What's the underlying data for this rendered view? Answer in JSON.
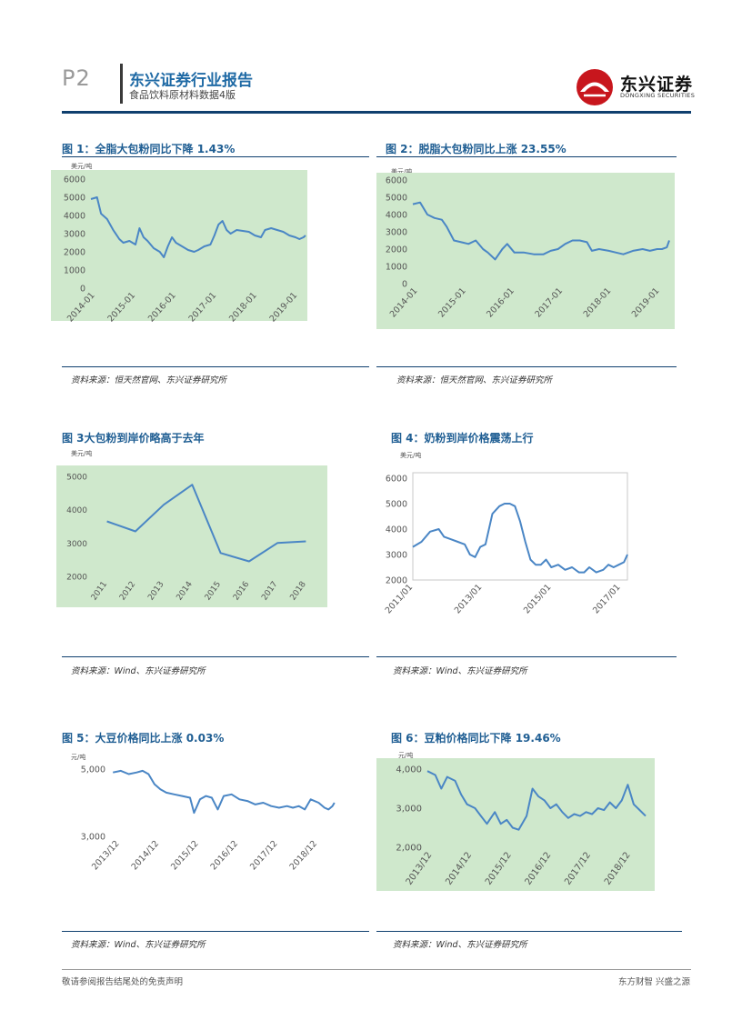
{
  "header": {
    "page_number": "P2",
    "title": "东兴证券行业报告",
    "subtitle": "食品饮料原材料数据4版",
    "logo_name": "东兴证券",
    "logo_en": "DONGXING SECURITIES"
  },
  "figures": [
    {
      "title": "图 1：全脂大包粉同比下降 1.43%",
      "unit": "美元/吨",
      "source": "资料来源：恒天然官网、东兴证券研究所"
    },
    {
      "title": "图 2：脱脂大包粉同比上涨 23.55%",
      "unit": "美元/吨",
      "source": "资料来源：恒天然官网、东兴证券研究所"
    },
    {
      "title": "图 3大包粉到岸价略高于去年",
      "unit": "美元/吨",
      "source": "资料来源：Wind、东兴证券研究所"
    },
    {
      "title": "图 4：奶粉到岸价格震荡上行",
      "unit": "美元/吨",
      "source": "资料来源：Wind、东兴证券研究所"
    },
    {
      "title": "图 5：大豆价格同比上涨 0.03%",
      "unit": "元/吨",
      "source": "资料来源：Wind、东兴证券研究所"
    },
    {
      "title": "图 6：豆粕价格同比下降 19.46%",
      "unit": "元/吨",
      "source": "资料来源：Wind、东兴证券研究所"
    }
  ],
  "chart_data": [
    {
      "type": "line",
      "title": "图 1：全脂大包粉同比下降 1.43%",
      "ylabel": "美元/吨",
      "ylim": [
        0,
        6000
      ],
      "yticks": [
        "6000",
        "5000",
        "4000",
        "3000",
        "2000",
        "1000",
        "0"
      ],
      "xticks": [
        "2014-01",
        "2015-01",
        "2016-01",
        "2017-01",
        "2018-01",
        "2019-01"
      ],
      "xlim": [
        2013.9,
        2019.2
      ],
      "series": [
        {
          "name": "全脂大包粉",
          "x": [
            2013.9,
            2014.05,
            2014.15,
            2014.3,
            2014.45,
            2014.6,
            2014.7,
            2014.85,
            2015.0,
            2015.1,
            2015.2,
            2015.3,
            2015.45,
            2015.6,
            2015.7,
            2015.8,
            2015.9,
            2016.0,
            2016.15,
            2016.3,
            2016.45,
            2016.55,
            2016.7,
            2016.85,
            2016.95,
            2017.05,
            2017.15,
            2017.25,
            2017.35,
            2017.5,
            2017.65,
            2017.8,
            2017.95,
            2018.1,
            2018.2,
            2018.35,
            2018.5,
            2018.65,
            2018.8,
            2018.95,
            2019.05,
            2019.15,
            2019.2
          ],
          "values": [
            4900,
            5000,
            4100,
            3800,
            3200,
            2700,
            2500,
            2600,
            2400,
            3300,
            2800,
            2600,
            2200,
            2000,
            1700,
            2300,
            2800,
            2500,
            2300,
            2100,
            2000,
            2100,
            2300,
            2400,
            2900,
            3500,
            3700,
            3200,
            3000,
            3200,
            3150,
            3100,
            2900,
            2800,
            3200,
            3300,
            3200,
            3100,
            2900,
            2800,
            2700,
            2800,
            2900
          ]
        }
      ],
      "source": "资料来源：恒天然官网、东兴证券研究所"
    },
    {
      "type": "line",
      "title": "图 2：脱脂大包粉同比上涨 23.55%",
      "ylabel": "美元/吨",
      "ylim": [
        0,
        6000
      ],
      "yticks": [
        "6000",
        "5000",
        "4000",
        "3000",
        "2000",
        "1000",
        "0"
      ],
      "xticks": [
        "2014-01",
        "2015-01",
        "2016-01",
        "2017-01",
        "2018-01",
        "2019-01"
      ],
      "xlim": [
        2013.9,
        2019.2
      ],
      "series": [
        {
          "name": "脱脂大包粉",
          "x": [
            2013.9,
            2014.05,
            2014.2,
            2014.35,
            2014.5,
            2014.6,
            2014.75,
            2014.9,
            2015.05,
            2015.2,
            2015.35,
            2015.45,
            2015.6,
            2015.75,
            2015.85,
            2016.0,
            2016.2,
            2016.4,
            2016.6,
            2016.75,
            2016.9,
            2017.05,
            2017.2,
            2017.35,
            2017.5,
            2017.6,
            2017.75,
            2017.95,
            2018.1,
            2018.25,
            2018.45,
            2018.65,
            2018.8,
            2018.95,
            2019.05,
            2019.15,
            2019.2
          ],
          "values": [
            4600,
            4700,
            4000,
            3800,
            3700,
            3300,
            2500,
            2400,
            2300,
            2500,
            2000,
            1800,
            1400,
            2000,
            2300,
            1800,
            1800,
            1700,
            1700,
            1900,
            2000,
            2300,
            2500,
            2500,
            2400,
            1900,
            2000,
            1900,
            1800,
            1700,
            1900,
            2000,
            1900,
            2000,
            2000,
            2100,
            2500
          ]
        }
      ],
      "source": "资料来源：恒天然官网、东兴证券研究所"
    },
    {
      "type": "line",
      "title": "图 3大包粉到岸价略高于去年",
      "ylabel": "美元/吨",
      "ylim": [
        2000,
        5000
      ],
      "yticks": [
        "5000",
        "4000",
        "3000",
        "2000"
      ],
      "categories": [
        "2011",
        "2012",
        "2013",
        "2014",
        "2015",
        "2016",
        "2017",
        "2018"
      ],
      "series": [
        {
          "name": "大包粉到岸价",
          "values": [
            3650,
            3350,
            4150,
            4750,
            2700,
            2450,
            3000,
            3050
          ]
        }
      ],
      "source": "资料来源：Wind、东兴证券研究所"
    },
    {
      "type": "line",
      "title": "图 4：奶粉到岸价格震荡上行",
      "ylabel": "美元/吨",
      "ylim": [
        2000,
        6000
      ],
      "yticks": [
        "6000",
        "5000",
        "4000",
        "3000",
        "2000"
      ],
      "xticks": [
        "2011/01",
        "2013/01",
        "2015/01",
        "2017/01"
      ],
      "xlim": [
        2011.0,
        2017.2
      ],
      "series": [
        {
          "name": "奶粉到岸价",
          "x": [
            2011.0,
            2011.25,
            2011.5,
            2011.75,
            2011.9,
            2012.1,
            2012.3,
            2012.5,
            2012.65,
            2012.8,
            2012.95,
            2013.1,
            2013.3,
            2013.5,
            2013.65,
            2013.8,
            2013.95,
            2014.1,
            2014.25,
            2014.4,
            2014.55,
            2014.7,
            2014.85,
            2015.0,
            2015.2,
            2015.4,
            2015.6,
            2015.8,
            2015.95,
            2016.1,
            2016.3,
            2016.5,
            2016.65,
            2016.8,
            2016.95,
            2017.1,
            2017.2
          ],
          "values": [
            3300,
            3500,
            3900,
            4000,
            3700,
            3600,
            3500,
            3400,
            3000,
            2900,
            3300,
            3400,
            4600,
            4900,
            5000,
            5000,
            4900,
            4300,
            3500,
            2800,
            2600,
            2600,
            2800,
            2500,
            2600,
            2400,
            2500,
            2300,
            2300,
            2500,
            2300,
            2400,
            2600,
            2500,
            2600,
            2700,
            3000
          ]
        }
      ],
      "source": "资料来源：Wind、东兴证券研究所"
    },
    {
      "type": "line",
      "title": "图 5：大豆价格同比上涨 0.03%",
      "ylabel": "元/吨",
      "ylim": [
        3000,
        5000
      ],
      "yticks": [
        "5,000",
        "3,000"
      ],
      "xticks": [
        "2013/12",
        "2014/12",
        "2015/12",
        "2016/12",
        "2017/12",
        "2018/12"
      ],
      "xlim": [
        2013.7,
        2019.4
      ],
      "series": [
        {
          "name": "大豆价格",
          "x": [
            2013.75,
            2013.95,
            2014.15,
            2014.35,
            2014.5,
            2014.65,
            2014.8,
            2014.95,
            2015.1,
            2015.3,
            2015.5,
            2015.7,
            2015.8,
            2015.95,
            2016.1,
            2016.25,
            2016.4,
            2016.55,
            2016.75,
            2016.95,
            2017.15,
            2017.35,
            2017.55,
            2017.75,
            2017.95,
            2018.15,
            2018.3,
            2018.45,
            2018.6,
            2018.75,
            2018.95,
            2019.1,
            2019.2,
            2019.3,
            2019.35
          ],
          "values": [
            4900,
            4950,
            4850,
            4900,
            4950,
            4850,
            4550,
            4400,
            4300,
            4250,
            4200,
            4150,
            3700,
            4100,
            4200,
            4150,
            3800,
            4200,
            4250,
            4100,
            4050,
            3950,
            4000,
            3900,
            3850,
            3900,
            3850,
            3900,
            3800,
            4100,
            4000,
            3850,
            3800,
            3900,
            4000
          ]
        }
      ],
      "source": "资料来源：Wind、东兴证券研究所"
    },
    {
      "type": "line",
      "title": "图 6：豆粕价格同比下降 19.46%",
      "ylabel": "元/吨",
      "ylim": [
        2000,
        4000
      ],
      "yticks": [
        "4,000",
        "3,000",
        "2,000"
      ],
      "xticks": [
        "2013/12",
        "2014/12",
        "2015/12",
        "2016/12",
        "2017/12",
        "2018/12"
      ],
      "xlim": [
        2013.8,
        2019.3
      ],
      "series": [
        {
          "name": "豆粕价格",
          "x": [
            2013.8,
            2014.0,
            2014.15,
            2014.3,
            2014.5,
            2014.65,
            2014.8,
            2015.0,
            2015.15,
            2015.3,
            2015.5,
            2015.65,
            2015.8,
            2015.95,
            2016.1,
            2016.3,
            2016.45,
            2016.6,
            2016.75,
            2016.9,
            2017.05,
            2017.2,
            2017.35,
            2017.5,
            2017.65,
            2017.8,
            2017.95,
            2018.1,
            2018.25,
            2018.4,
            2018.55,
            2018.7,
            2018.85,
            2019.0,
            2019.15,
            2019.3
          ],
          "values": [
            3950,
            3850,
            3500,
            3800,
            3700,
            3350,
            3100,
            3000,
            2800,
            2600,
            2900,
            2600,
            2700,
            2500,
            2450,
            2800,
            3500,
            3300,
            3200,
            3000,
            3100,
            2900,
            2750,
            2850,
            2800,
            2900,
            2850,
            3000,
            2950,
            3150,
            3000,
            3200,
            3600,
            3100,
            2950,
            2800
          ]
        }
      ],
      "source": "资料来源：Wind、东兴证券研究所"
    }
  ],
  "footer": {
    "left": "敬请参阅报告结尾处的免责声明",
    "right": "东方财智 兴盛之源"
  },
  "colors": {
    "accent": "#1f6aa5",
    "plot_bg": "#cfe8cc",
    "line": "#4a86c5",
    "rule": "#0f3f6e"
  }
}
